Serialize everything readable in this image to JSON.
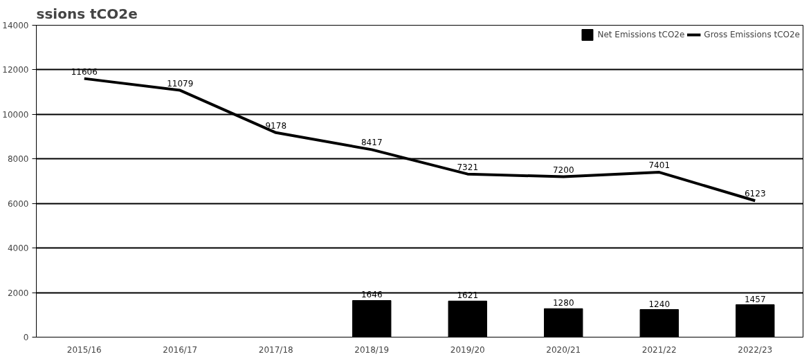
{
  "chart_data": {
    "type": "bar",
    "title": "ssions tCO2e",
    "categories": [
      "2015/16",
      "2016/17",
      "2017/18",
      "2018/19",
      "2019/20",
      "2020/21",
      "2021/22",
      "2022/23"
    ],
    "series": [
      {
        "name": "Net Emissions tCO2e",
        "color": "#000000",
        "values": [
          null,
          null,
          null,
          1646,
          1621,
          1280,
          1240,
          1457
        ]
      },
      {
        "name": "Gross Emissions tCO2e",
        "type": "line",
        "color": "#000000",
        "values": [
          11606,
          11079,
          9178,
          8417,
          7321,
          7200,
          7401,
          6123
        ]
      }
    ],
    "ylim": [
      0,
      14000
    ],
    "yticks": [
      0,
      2000,
      4000,
      6000,
      8000,
      10000,
      12000,
      14000
    ],
    "grid": "y",
    "legend": "top right",
    "data_labels": true,
    "marker": "none",
    "line_style": "solid"
  }
}
